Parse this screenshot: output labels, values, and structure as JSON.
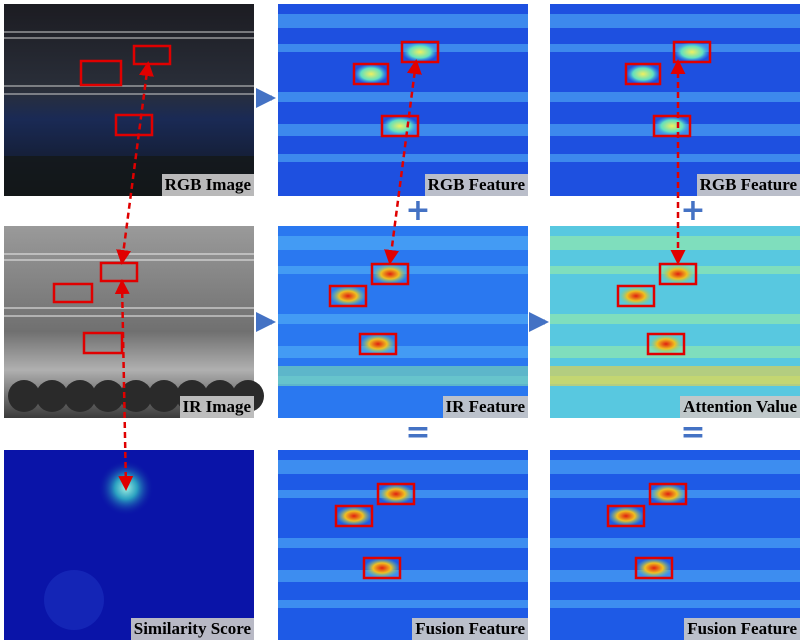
{
  "panels": [
    {
      "label": "RGB Image"
    },
    {
      "label": "RGB Feature"
    },
    {
      "label": "RGB Feature"
    },
    {
      "label": "IR Image"
    },
    {
      "label": "IR Feature"
    },
    {
      "label": "Attention Value"
    },
    {
      "label": "Similarity Score"
    },
    {
      "label": "Fusion Feature"
    },
    {
      "label": "Fusion Feature"
    }
  ],
  "operators": [
    "+",
    "+",
    "=",
    "="
  ]
}
